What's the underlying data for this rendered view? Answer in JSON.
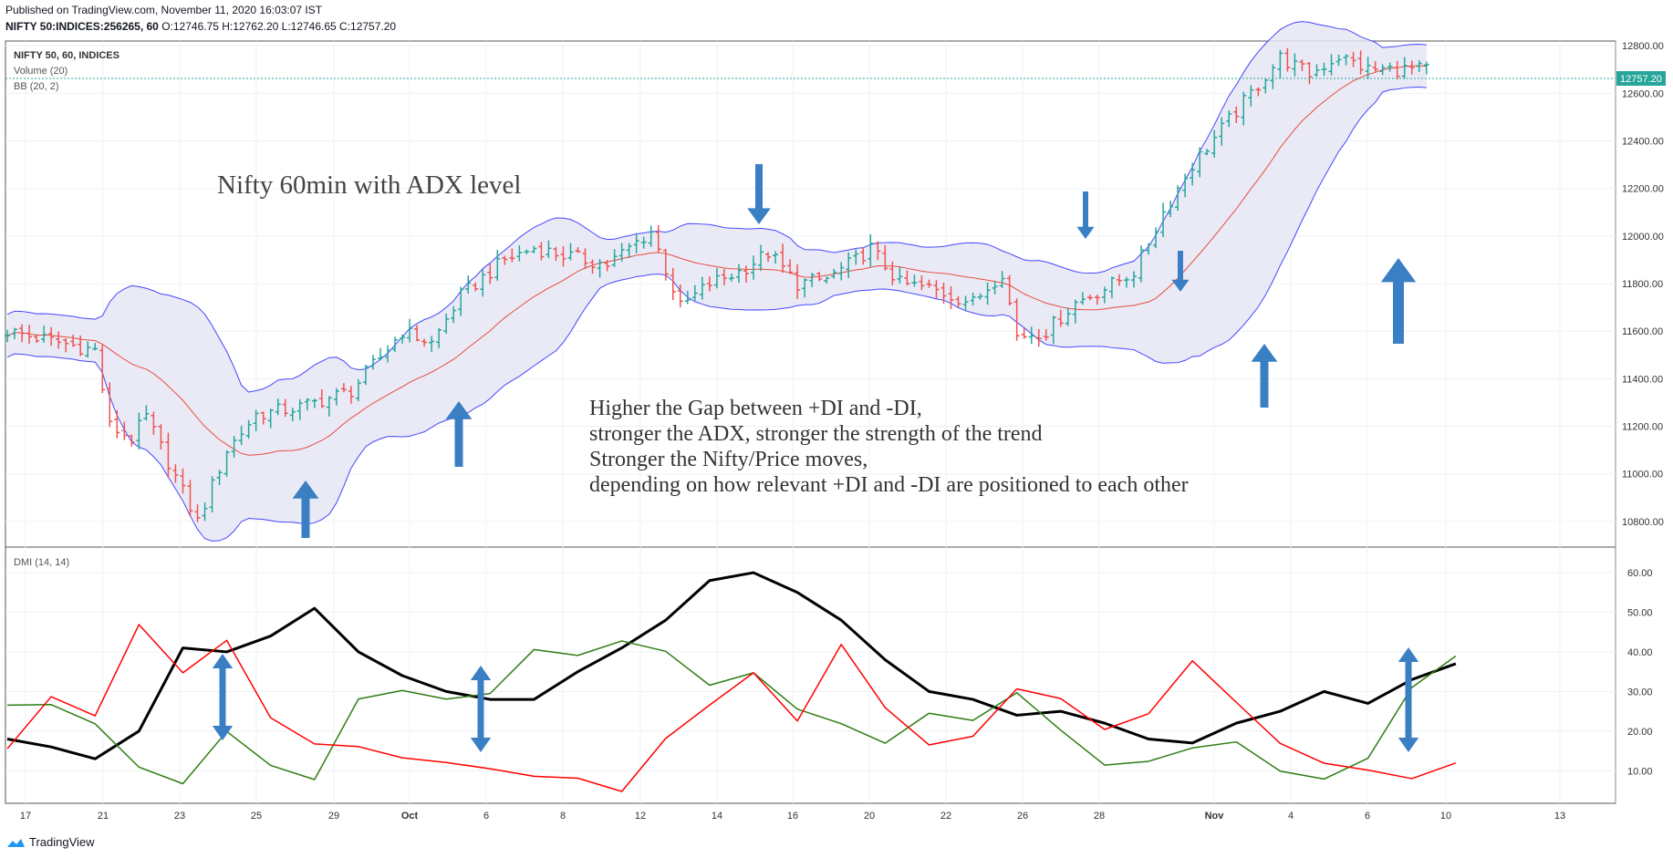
{
  "header": {
    "published": "Published on TradingView.com, November 11, 2020 16:03:07 IST",
    "symbol": "NIFTY 50:INDICES:256265, 60",
    "ohlc": "O:12746.75 H:12762.20 L:12746.65 C:12757.20"
  },
  "legend": {
    "symbol_label": "NIFTY 50, 60, INDICES",
    "volume_label": "Volume (20)",
    "bb_label": "BB (20, 2)",
    "dmi_label": "DMI (14, 14)"
  },
  "last_price": "12757.20",
  "annotations": {
    "title": "Nifty 60min with ADX level",
    "note": [
      "Higher the Gap between +DI and -DI,",
      "stronger the ADX, stronger the strength of the trend",
      "Stronger the Nifty/Price moves,",
      "depending on how relevant +DI and -DI are positioned to each other"
    ]
  },
  "footer": {
    "brand": "TradingView"
  },
  "colors": {
    "up": "#26a69a",
    "down": "#ef5350",
    "bb_band": "#4646ff",
    "bb_fill": "#e6e6f5",
    "bb_basis": "#e74c3c",
    "plus_di": "#2e7d12",
    "minus_di": "#ff0000",
    "adx": "#000000",
    "arrow": "#3a7fc4",
    "last_price": "#26a69a"
  },
  "chart_data": [
    {
      "type": "line",
      "title": "NIFTY 50, 60, INDICES",
      "ylim": [
        10700,
        12820
      ],
      "y_ticks": [
        10800,
        11000,
        11200,
        11400,
        11600,
        11800,
        12000,
        12200,
        12400,
        12600,
        12800
      ],
      "y_tick_labels": [
        "10800.00",
        "11000.00",
        "11200.00",
        "11400.00",
        "11600.00",
        "11800.00",
        "12000.00",
        "12200.00",
        "12400.00",
        "12600.00",
        "12800.00"
      ],
      "x_tick_labels": [
        "17",
        "21",
        "23",
        "25",
        "29",
        "Oct",
        "6",
        "8",
        "12",
        "14",
        "16",
        "20",
        "22",
        "26",
        "28",
        "Nov",
        "4",
        "6",
        "10",
        "13"
      ],
      "price_anchors": {
        "x": [
          0,
          6,
          12,
          14,
          17,
          19,
          22,
          26,
          30,
          34,
          40,
          47,
          54,
          58,
          62,
          68,
          72,
          76,
          82,
          88,
          92,
          96,
          100,
          104,
          108,
          112,
          116,
          118,
          122,
          126,
          132,
          136,
          138,
          142,
          146,
          150,
          154,
          158,
          162,
          166,
          170,
          174,
          178,
          182,
          186,
          190,
          194,
          198,
          202,
          206
        ],
        "close": [
          11600,
          11560,
          11520,
          11200,
          11150,
          11240,
          11050,
          10800,
          11100,
          11250,
          11280,
          11350,
          11600,
          11550,
          11750,
          11900,
          11950,
          11920,
          11880,
          12020,
          11700,
          11800,
          11850,
          11930,
          11800,
          11820,
          11900,
          11950,
          11800,
          11780,
          11720,
          11850,
          11580,
          11600,
          11720,
          11780,
          11850,
          12100,
          12300,
          12450,
          12600,
          12750,
          12680,
          12757,
          12700,
          12700,
          12700,
          12700,
          12700,
          12700
        ]
      },
      "series": [
        {
          "name": "Price (OHLC bars)"
        },
        {
          "name": "BB upper"
        },
        {
          "name": "BB basis"
        },
        {
          "name": "BB lower"
        }
      ]
    },
    {
      "type": "line",
      "title": "DMI (14, 14)",
      "ylim": [
        2,
        66
      ],
      "y_ticks": [
        10,
        20,
        30,
        40,
        50,
        60
      ],
      "y_tick_labels": [
        "10.00",
        "20.00",
        "30.00",
        "40.00",
        "50.00",
        "60.00"
      ],
      "x": [
        0,
        6,
        12,
        18,
        24,
        30,
        36,
        42,
        48,
        54,
        60,
        66,
        72,
        78,
        84,
        90,
        96,
        102,
        108,
        114,
        120,
        126,
        132,
        138,
        144,
        150,
        156,
        162,
        168,
        174,
        180,
        186,
        192,
        198
      ],
      "series": [
        {
          "name": "ADX",
          "values": [
            18,
            16,
            13,
            20,
            41,
            40,
            44,
            51,
            40,
            34,
            30,
            28,
            28,
            35,
            41,
            48,
            58,
            60,
            55,
            48,
            38,
            30,
            28,
            24,
            25,
            22,
            18,
            17,
            22,
            25,
            30,
            27,
            33,
            37
          ]
        },
        {
          "name": "+DI",
          "values": [
            27,
            25,
            22,
            12,
            8,
            18,
            12,
            9,
            28,
            32,
            28,
            30,
            42,
            38,
            44,
            40,
            30,
            33,
            27,
            20,
            16,
            26,
            24,
            30,
            19,
            13,
            11,
            14,
            18,
            10,
            9,
            14,
            32,
            38
          ]
        },
        {
          "name": "-DI",
          "values": [
            16,
            27,
            24,
            48,
            36,
            41,
            24,
            18,
            16,
            15,
            12,
            11,
            10,
            7,
            6,
            18,
            25,
            33,
            24,
            40,
            25,
            18,
            20,
            31,
            27,
            22,
            23,
            36,
            28,
            17,
            13,
            11,
            9,
            11
          ]
        }
      ]
    }
  ]
}
